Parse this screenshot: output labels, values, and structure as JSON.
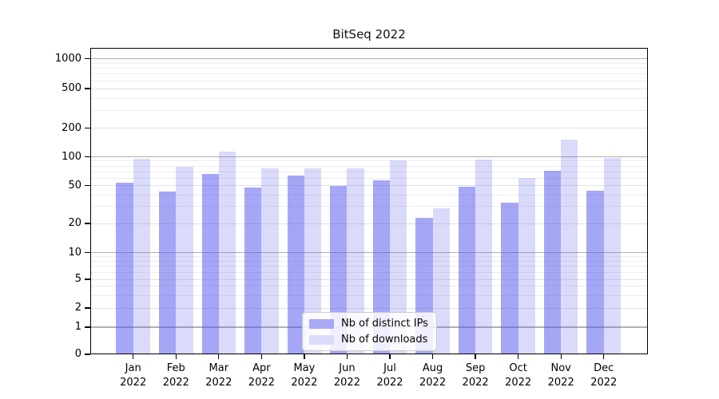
{
  "chart_data": {
    "type": "bar",
    "title": "BitSeq 2022",
    "categories": [
      "Jan",
      "Feb",
      "Mar",
      "Apr",
      "May",
      "Jun",
      "Jul",
      "Aug",
      "Sep",
      "Oct",
      "Nov",
      "Dec"
    ],
    "category_year": "2022",
    "series": [
      {
        "name": "Nb of distinct IPs",
        "swatch_color": "#a8a8f7",
        "fill": "rgba(85,85,238,0.52)",
        "values": [
          54,
          43,
          66,
          48,
          64,
          50,
          57,
          23,
          49,
          33,
          71,
          44
        ]
      },
      {
        "name": "Nb of downloads",
        "swatch_color": "#dcdcfa",
        "fill": "rgba(85,85,238,0.22)",
        "values": [
          96,
          78,
          113,
          75,
          76,
          75,
          91,
          29,
          93,
          60,
          152,
          97
        ]
      }
    ],
    "y_axis": {
      "scale": "symlog",
      "labeled_ticks": [
        0,
        1,
        2,
        5,
        10,
        20,
        50,
        100,
        200,
        500,
        1000
      ],
      "decade_ticks": [
        1,
        10,
        100,
        1000
      ],
      "minor_ticks": [
        3,
        4,
        6,
        7,
        8,
        9,
        30,
        40,
        60,
        70,
        80,
        90,
        300,
        400,
        600,
        700,
        800,
        900
      ],
      "ylim": [
        0,
        1300
      ]
    },
    "xlabel": "",
    "ylabel": "",
    "grid": true,
    "legend_position": "lower center inside axes",
    "colors": {
      "decade_gridline": "#b0b0b0",
      "minor_gridline": "#ededed",
      "axis": "#000000"
    }
  }
}
